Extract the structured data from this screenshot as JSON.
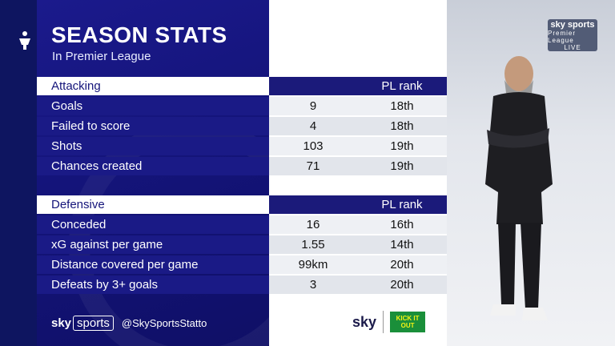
{
  "header": {
    "title": "SEASON STATS",
    "subtitle": "In Premier League"
  },
  "sections": [
    {
      "name": "Attacking",
      "rank_header": "PL rank",
      "rows": [
        {
          "label": "Goals",
          "value": "9",
          "rank": "18th"
        },
        {
          "label": "Failed to score",
          "value": "4",
          "rank": "18th"
        },
        {
          "label": "Shots",
          "value": "103",
          "rank": "19th"
        },
        {
          "label": "Chances created",
          "value": "71",
          "rank": "19th"
        }
      ]
    },
    {
      "name": "Defensive",
      "rank_header": "PL rank",
      "rows": [
        {
          "label": "Conceded",
          "value": "16",
          "rank": "16th"
        },
        {
          "label": "xG against per game",
          "value": "1.55",
          "rank": "14th"
        },
        {
          "label": "Distance covered per game",
          "value": "99km",
          "rank": "20th"
        },
        {
          "label": "Defeats by 3+ goals",
          "value": "3",
          "rank": "20th"
        }
      ]
    }
  ],
  "footer": {
    "brand_sky": "sky",
    "brand_sports": "sports",
    "handle": "@SkySportsStatto",
    "right_sky": "sky",
    "kickitout": "KICK IT OUT"
  },
  "broadcast_badge": {
    "top": "sky sports",
    "middle": "Premier League",
    "bottom": "LIVE"
  },
  "colors": {
    "navy": "#14147a",
    "row_light": "#eef0f4",
    "row_dark": "#e2e5eb",
    "kickitout_green": "#1a8f3a"
  }
}
